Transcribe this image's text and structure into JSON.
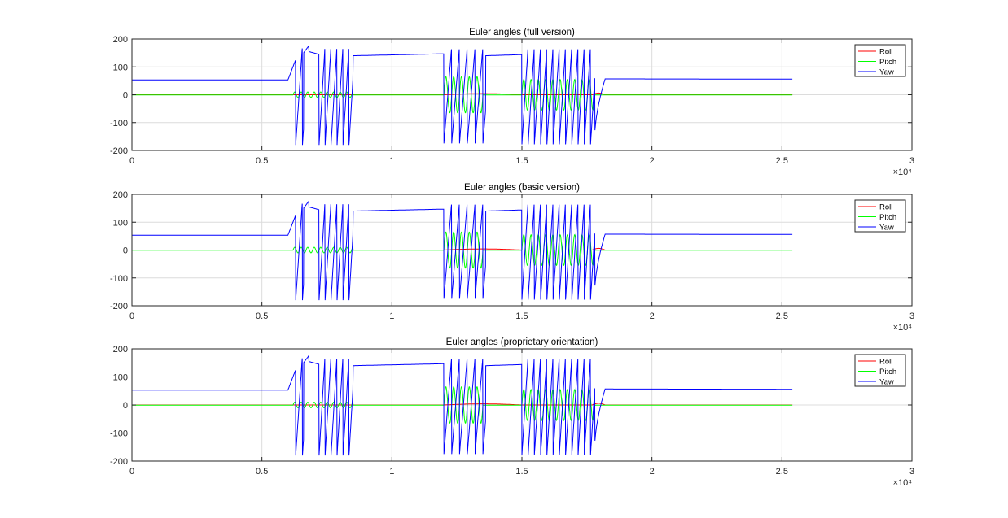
{
  "figure": {
    "background": "#ffffff",
    "axes_color": "#262626",
    "grid_color": "#dcdcdc"
  },
  "chart_data": [
    {
      "type": "line",
      "title": "Euler angles (full version)",
      "xlim": [
        0,
        30000
      ],
      "ylim": [
        -200,
        200
      ],
      "xticks": [
        0,
        5000,
        10000,
        15000,
        20000,
        25000,
        30000
      ],
      "xtick_labels": [
        "0",
        "0.5",
        "1",
        "1.5",
        "2",
        "2.5",
        "3"
      ],
      "x_multiplier": "×10⁴",
      "yticks": [
        -200,
        -100,
        0,
        100,
        200
      ],
      "ytick_labels": [
        "-200",
        "-100",
        "0",
        "100",
        "200"
      ],
      "grid": true,
      "legend": "top-right",
      "legend_entries": [
        "Roll",
        "Pitch",
        "Yaw"
      ],
      "series": [
        {
          "name": "Roll",
          "color": "#ff0000"
        },
        {
          "name": "Pitch",
          "color": "#00ff00"
        },
        {
          "name": "Yaw",
          "color": "#0000ff"
        }
      ]
    },
    {
      "type": "line",
      "title": "Euler angles (basic version)",
      "xlim": [
        0,
        30000
      ],
      "ylim": [
        -200,
        200
      ],
      "xticks": [
        0,
        5000,
        10000,
        15000,
        20000,
        25000,
        30000
      ],
      "xtick_labels": [
        "0",
        "0.5",
        "1",
        "1.5",
        "2",
        "2.5",
        "3"
      ],
      "x_multiplier": "×10⁴",
      "yticks": [
        -200,
        -100,
        0,
        100,
        200
      ],
      "ytick_labels": [
        "-200",
        "-100",
        "0",
        "100",
        "200"
      ],
      "grid": true,
      "legend": "top-right",
      "legend_entries": [
        "Roll",
        "Pitch",
        "Yaw"
      ],
      "series": [
        {
          "name": "Roll",
          "color": "#ff0000"
        },
        {
          "name": "Pitch",
          "color": "#00ff00"
        },
        {
          "name": "Yaw",
          "color": "#0000ff"
        }
      ]
    },
    {
      "type": "line",
      "title": "Euler angles (proprietary orientation)",
      "xlim": [
        0,
        30000
      ],
      "ylim": [
        -200,
        200
      ],
      "xticks": [
        0,
        5000,
        10000,
        15000,
        20000,
        25000,
        30000
      ],
      "xtick_labels": [
        "0",
        "0.5",
        "1",
        "1.5",
        "2",
        "2.5",
        "3"
      ],
      "x_multiplier": "×10⁴",
      "yticks": [
        -200,
        -100,
        0,
        100,
        200
      ],
      "ytick_labels": [
        "-200",
        "-100",
        "0",
        "100",
        "200"
      ],
      "grid": true,
      "legend": "top-right",
      "legend_entries": [
        "Roll",
        "Pitch",
        "Yaw"
      ],
      "series": [
        {
          "name": "Roll",
          "color": "#ff0000"
        },
        {
          "name": "Pitch",
          "color": "#00ff00"
        },
        {
          "name": "Yaw",
          "color": "#0000ff"
        }
      ]
    }
  ],
  "signal_shape": {
    "x_end": 25400,
    "yaw_segments": [
      {
        "x": [
          0,
          6000
        ],
        "y": [
          53,
          53
        ]
      },
      {
        "x": [
          6000,
          6400
        ],
        "y": [
          53,
          150
        ]
      },
      {
        "x": [
          6400,
          6500
        ],
        "y": [
          150,
          180
        ]
      },
      {
        "x": [
          6500,
          6600
        ],
        "y": [
          180,
          150
        ]
      },
      {
        "x": [
          6600,
          6800
        ],
        "y": [
          150,
          175
        ]
      },
      {
        "x": [
          6800,
          7200
        ],
        "y": [
          155,
          145
        ]
      },
      {
        "x": [
          8500,
          12000
        ],
        "y": [
          140,
          147
        ]
      },
      {
        "x": [
          13600,
          15000
        ],
        "y": [
          140,
          144
        ]
      },
      {
        "x": [
          18200,
          25400
        ],
        "y": [
          57,
          56
        ]
      }
    ],
    "yaw_wraps": [
      {
        "start": 6300,
        "end": 6600,
        "period": 260,
        "amp": 180
      },
      {
        "start": 7200,
        "end": 8500,
        "period": 230,
        "amp": 180
      },
      {
        "start": 12000,
        "end": 13600,
        "period": 300,
        "amp": 175
      },
      {
        "start": 15000,
        "end": 17800,
        "period": 240,
        "amp": 178
      }
    ],
    "yaw_recovery": {
      "x": [
        17800,
        18200
      ],
      "y": [
        -150,
        57
      ]
    },
    "pitch_bursts": [
      {
        "start": 6200,
        "end": 8500,
        "period": 250,
        "amp": 10
      },
      {
        "start": 12000,
        "end": 13500,
        "period": 300,
        "amp": 65
      },
      {
        "start": 15000,
        "end": 17800,
        "period": 280,
        "amp": 55
      }
    ],
    "roll_bumps": [
      {
        "start": 12000,
        "end": 15000,
        "amp": 4
      },
      {
        "start": 17700,
        "end": 18200,
        "amp": 6
      }
    ]
  }
}
